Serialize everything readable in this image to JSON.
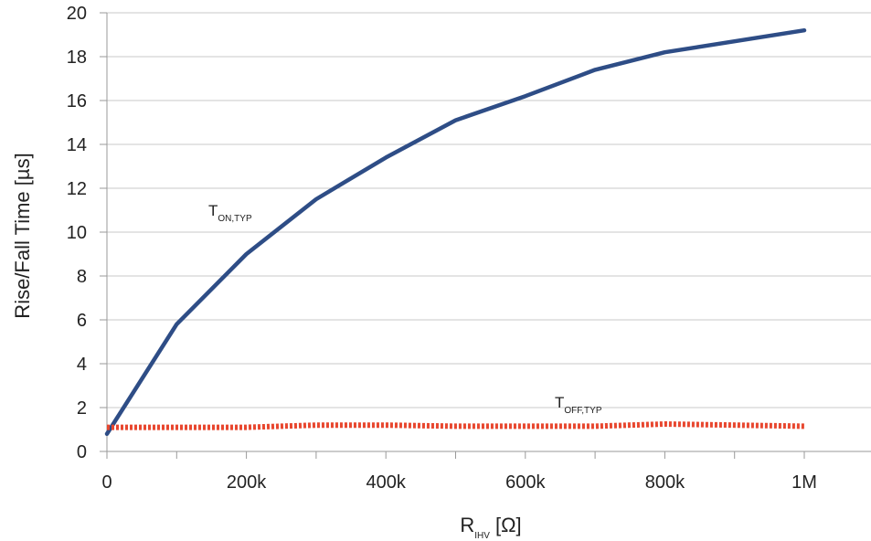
{
  "chart_data": {
    "type": "line",
    "xlabel": {
      "main": "R",
      "sub": "IHV",
      "unit": " [Ω]"
    },
    "ylabel": "Rise/Fall  Time [µs]",
    "xlim": [
      0,
      1000000
    ],
    "ylim": [
      0,
      20
    ],
    "x_ticks": [
      {
        "value": 0,
        "label": "0"
      },
      {
        "value": 200000,
        "label": "200k"
      },
      {
        "value": 400000,
        "label": "400k"
      },
      {
        "value": 600000,
        "label": "600k"
      },
      {
        "value": 800000,
        "label": "800k"
      },
      {
        "value": 1000000,
        "label": "1M"
      }
    ],
    "y_ticks": [
      0,
      2,
      4,
      6,
      8,
      10,
      12,
      14,
      16,
      18,
      20
    ],
    "grid": "horizontal",
    "series": [
      {
        "id": "ton",
        "label_main": "T",
        "label_sub": "ON,TYP",
        "color": "#2e4d86",
        "style": "solid",
        "x": [
          0,
          100000,
          200000,
          300000,
          400000,
          500000,
          600000,
          700000,
          800000,
          1000000
        ],
        "y": [
          0.8,
          5.8,
          9.0,
          11.5,
          13.4,
          15.1,
          16.2,
          17.4,
          18.2,
          19.2
        ]
      },
      {
        "id": "toff",
        "label_main": "T",
        "label_sub": "OFF,TYP",
        "color": "#e8472f",
        "style": "dotted",
        "x": [
          0,
          100000,
          200000,
          300000,
          400000,
          500000,
          600000,
          700000,
          800000,
          1000000
        ],
        "y": [
          1.1,
          1.1,
          1.1,
          1.2,
          1.2,
          1.15,
          1.15,
          1.15,
          1.25,
          1.15
        ]
      }
    ]
  }
}
